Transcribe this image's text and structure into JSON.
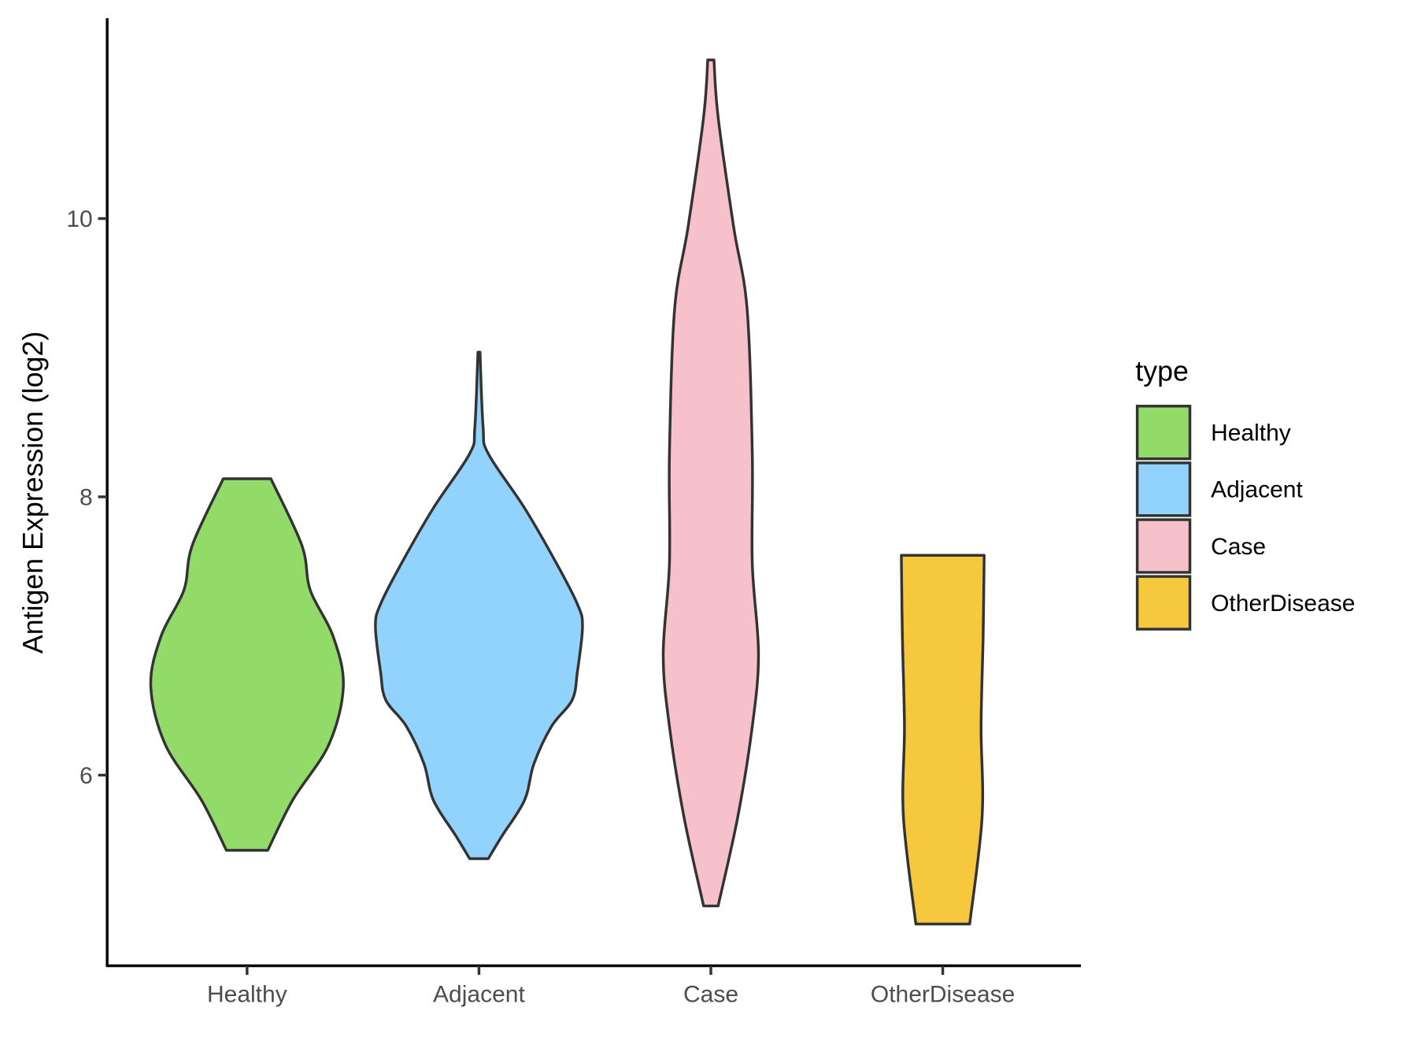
{
  "chart_data": {
    "type": "violin",
    "title": "",
    "xlabel": "",
    "ylabel": "Antigen Expression (log2)",
    "ylim": [
      4.63,
      11.44
    ],
    "yticks": [
      6,
      8,
      10
    ],
    "grid": false,
    "legend": {
      "title": "type",
      "placement": "right"
    },
    "categories": [
      "Healthy",
      "Adjacent",
      "Case",
      "OtherDisease"
    ],
    "series": [
      {
        "name": "Healthy",
        "color": "#93DB69",
        "min": 5.46,
        "max": 8.13,
        "profile": [
          [
            8.13,
            0.23
          ],
          [
            7.65,
            0.53
          ],
          [
            7.33,
            0.61
          ],
          [
            7.0,
            0.83
          ],
          [
            6.64,
            0.93
          ],
          [
            6.22,
            0.79
          ],
          [
            5.82,
            0.44
          ],
          [
            5.46,
            0.2
          ]
        ]
      },
      {
        "name": "Adjacent",
        "color": "#92D3FE",
        "min": 5.4,
        "max": 9.04,
        "profile": [
          [
            9.04,
            0.01
          ],
          [
            8.5,
            0.04
          ],
          [
            8.31,
            0.09
          ],
          [
            7.92,
            0.44
          ],
          [
            7.52,
            0.75
          ],
          [
            7.23,
            0.95
          ],
          [
            7.07,
            1.0
          ],
          [
            6.74,
            0.95
          ],
          [
            6.54,
            0.9
          ],
          [
            6.35,
            0.7
          ],
          [
            6.08,
            0.53
          ],
          [
            5.82,
            0.44
          ],
          [
            5.56,
            0.22
          ],
          [
            5.4,
            0.09
          ]
        ]
      },
      {
        "name": "Case",
        "color": "#F7C1CB",
        "min": 5.06,
        "max": 11.14,
        "profile": [
          [
            11.14,
            0.03
          ],
          [
            10.73,
            0.07
          ],
          [
            9.94,
            0.22
          ],
          [
            9.35,
            0.35
          ],
          [
            8.31,
            0.4
          ],
          [
            7.52,
            0.4
          ],
          [
            6.87,
            0.46
          ],
          [
            6.35,
            0.4
          ],
          [
            5.7,
            0.26
          ],
          [
            5.06,
            0.07
          ]
        ]
      },
      {
        "name": "OtherDisease",
        "color": "#F6C83E",
        "min": 4.93,
        "max": 7.58,
        "profile": [
          [
            7.58,
            0.4
          ],
          [
            7.0,
            0.39
          ],
          [
            6.35,
            0.37
          ],
          [
            5.7,
            0.38
          ],
          [
            4.93,
            0.26
          ]
        ]
      }
    ]
  }
}
